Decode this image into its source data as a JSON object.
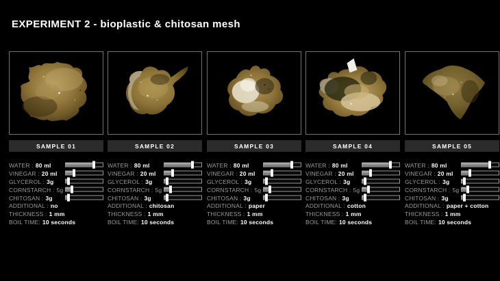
{
  "title": "EXPERIMENT 2 - bioplastic & chitosan mesh",
  "colors": {
    "background": "#000000",
    "title_text": "#ffffff",
    "param_label": "#9b9b9b",
    "param_value": "#ffffff",
    "sample_bar_bg": "#2b2b2b",
    "photo_border": "#747474",
    "slider_fill": "#8d8d8d",
    "slider_handle": "#ffffff"
  },
  "samples": [
    {
      "label": "SAMPLE 01",
      "params": [
        {
          "label": "WATER :",
          "value": "80 ml",
          "slider": 76
        },
        {
          "label": "VINEGAR :",
          "value": "20 ml",
          "slider": 22
        },
        {
          "label": "GLYCEROL :",
          "value": "3g",
          "slider": 8
        },
        {
          "label": "CORNSTARCH :",
          "value": "5g",
          "slider": 17
        },
        {
          "label": "CHITOSAN :",
          "value": "3g",
          "slider": 8
        },
        {
          "label": "ADDITIONAL :",
          "value": "no"
        },
        {
          "label": "THICKNESS :",
          "value": "1 mm"
        },
        {
          "label": "BOIL TIME:",
          "value": "10 seconds"
        }
      ]
    },
    {
      "label": "SAMPLE 02",
      "params": [
        {
          "label": "WATER :",
          "value": "80 ml",
          "slider": 76
        },
        {
          "label": "VINEGAR :",
          "value": "20 ml",
          "slider": 22
        },
        {
          "label": "GLYCEROL :",
          "value": "3g",
          "slider": 8
        },
        {
          "label": "CORNSTARCH :",
          "value": "5g",
          "slider": 17
        },
        {
          "label": "CHITOSAN :",
          "value": "3g",
          "slider": 8
        },
        {
          "label": "ADDITIONAL :",
          "value": "chitosan"
        },
        {
          "label": "THICKNESS :",
          "value": "1 mm"
        },
        {
          "label": "BOIL TIME:",
          "value": "10 seconds"
        }
      ]
    },
    {
      "label": "SAMPLE 03",
      "params": [
        {
          "label": "WATER :",
          "value": "80 ml",
          "slider": 76
        },
        {
          "label": "VINEGAR :",
          "value": "20 ml",
          "slider": 22
        },
        {
          "label": "GLYCEROL :",
          "value": "3g",
          "slider": 8
        },
        {
          "label": "CORNSTARCH :",
          "value": "5g",
          "slider": 17
        },
        {
          "label": "CHITOSAN :",
          "value": "3g",
          "slider": 8
        },
        {
          "label": "ADDITIONAL :",
          "value": "paper"
        },
        {
          "label": "THICKNESS :",
          "value": "1 mm"
        },
        {
          "label": "BOIL TIME:",
          "value": "10 seconds"
        }
      ]
    },
    {
      "label": "SAMPLE 04",
      "params": [
        {
          "label": "WATER :",
          "value": "80 ml",
          "slider": 76
        },
        {
          "label": "VINEGAR :",
          "value": "20 ml",
          "slider": 22
        },
        {
          "label": "GLYCEROL :",
          "value": "3g",
          "slider": 8
        },
        {
          "label": "CORNSTARCH :",
          "value": "5g",
          "slider": 17
        },
        {
          "label": "CHITOSAN :",
          "value": "3g",
          "slider": 8
        },
        {
          "label": "ADDITIONAL :",
          "value": "cotton"
        },
        {
          "label": "THICKNESS :",
          "value": "1 mm"
        },
        {
          "label": "BOIL TIME:",
          "value": "10 seconds"
        }
      ]
    },
    {
      "label": "SAMPLE 05",
      "params": [
        {
          "label": "WATER :",
          "value": "80 ml",
          "slider": 76
        },
        {
          "label": "VINEGAR :",
          "value": "20 ml",
          "slider": 22
        },
        {
          "label": "GLYCEROL :",
          "value": "3g",
          "slider": 8
        },
        {
          "label": "CORNSTARCH :",
          "value": "5g",
          "slider": 17
        },
        {
          "label": "CHITOSAN :",
          "value": "3g",
          "slider": 8
        },
        {
          "label": "ADDITIONAL :",
          "value": "paper + cotton"
        },
        {
          "label": "THICKNESS :",
          "value": "1 mm"
        },
        {
          "label": "BOIL TIME:",
          "value": "10 seconds"
        }
      ]
    }
  ]
}
